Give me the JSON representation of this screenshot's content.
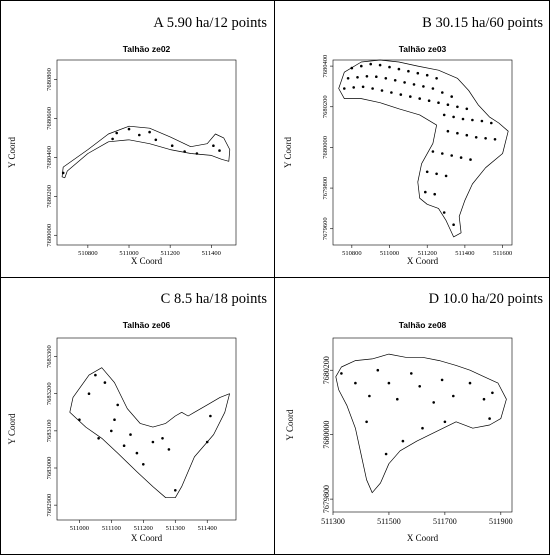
{
  "panels": [
    {
      "label": "A 5.90 ha/12 points"
    },
    {
      "label": "B 30.15 ha/60 points"
    },
    {
      "label": "C 8.5 ha/18 points"
    },
    {
      "label": "D 10.0 ha/20 points"
    }
  ],
  "chart_data": [
    {
      "type": "scatter",
      "title": "Talhão ze02",
      "xlabel": "X Coord",
      "ylabel": "Y Coord",
      "x_ticks": [
        "510800",
        "511000",
        "511200",
        "511400"
      ],
      "y_ticks": [
        "7680000",
        "7680200",
        "7680400",
        "7680600",
        "7680800"
      ],
      "xlim": [
        510650,
        511520
      ],
      "ylim": [
        7679950,
        7680900
      ],
      "boundary": [
        [
          510680,
          7680350
        ],
        [
          510800,
          7680440
        ],
        [
          510900,
          7680520
        ],
        [
          511000,
          7680560
        ],
        [
          511100,
          7680550
        ],
        [
          511200,
          7680505
        ],
        [
          511300,
          7680455
        ],
        [
          511380,
          7680470
        ],
        [
          511420,
          7680520
        ],
        [
          511460,
          7680500
        ],
        [
          511490,
          7680440
        ],
        [
          511485,
          7680380
        ],
        [
          511450,
          7680390
        ],
        [
          511400,
          7680410
        ],
        [
          511300,
          7680420
        ],
        [
          511200,
          7680440
        ],
        [
          511100,
          7680470
        ],
        [
          511000,
          7680490
        ],
        [
          510900,
          7680480
        ],
        [
          510800,
          7680420
        ],
        [
          510700,
          7680330
        ],
        [
          510688,
          7680295
        ],
        [
          510675,
          7680300
        ]
      ],
      "x": [
        510680,
        510920,
        510940,
        511000,
        511050,
        511100,
        511130,
        511210,
        511270,
        511330,
        511410,
        511440
      ],
      "y": [
        7680320,
        7680495,
        7680525,
        7680545,
        7680515,
        7680530,
        7680490,
        7680460,
        7680430,
        7680420,
        7680460,
        7680435
      ]
    },
    {
      "type": "scatter",
      "title": "Talhão ze03",
      "xlabel": "X Coord",
      "ylabel": "Y Coord",
      "x_ticks": [
        "510800",
        "511000",
        "511200",
        "511400",
        "511600"
      ],
      "y_ticks": [
        "7679600",
        "7679800",
        "7680000",
        "7680200",
        "7680400"
      ],
      "xlim": [
        510700,
        511650
      ],
      "ylim": [
        7679520,
        7680430
      ],
      "boundary": [
        [
          510730,
          7680290
        ],
        [
          510760,
          7680370
        ],
        [
          510850,
          7680420
        ],
        [
          510950,
          7680430
        ],
        [
          511050,
          7680420
        ],
        [
          511150,
          7680400
        ],
        [
          511260,
          7680380
        ],
        [
          511360,
          7680340
        ],
        [
          511420,
          7680280
        ],
        [
          511470,
          7680210
        ],
        [
          511530,
          7680150
        ],
        [
          511580,
          7680120
        ],
        [
          511630,
          7680080
        ],
        [
          511600,
          7679970
        ],
        [
          511510,
          7679900
        ],
        [
          511440,
          7679820
        ],
        [
          511400,
          7679740
        ],
        [
          511370,
          7679660
        ],
        [
          511380,
          7679580
        ],
        [
          511340,
          7679560
        ],
        [
          511300,
          7679640
        ],
        [
          511260,
          7679700
        ],
        [
          511200,
          7679720
        ],
        [
          511160,
          7679750
        ],
        [
          511150,
          7679830
        ],
        [
          511170,
          7679920
        ],
        [
          511230,
          7680020
        ],
        [
          511250,
          7680110
        ],
        [
          511160,
          7680160
        ],
        [
          511050,
          7680190
        ],
        [
          510950,
          7680220
        ],
        [
          510850,
          7680240
        ],
        [
          510760,
          7680240
        ]
      ],
      "x": [
        510800,
        510850,
        510900,
        510950,
        511000,
        511050,
        511100,
        511150,
        511200,
        511250,
        510780,
        510830,
        510880,
        510930,
        510980,
        511030,
        511080,
        511130,
        511180,
        511230,
        511280,
        511330,
        510760,
        510810,
        510860,
        510910,
        510960,
        511010,
        511060,
        511110,
        511160,
        511210,
        511260,
        511310,
        511360,
        511410,
        511290,
        511340,
        511390,
        511440,
        511490,
        511540,
        511310,
        511360,
        511410,
        511460,
        511510,
        511560,
        511230,
        511280,
        511330,
        511380,
        511430,
        511200,
        511250,
        511300,
        511190,
        511240,
        511290,
        511340
      ],
      "y": [
        7680390,
        7680400,
        7680410,
        7680405,
        7680395,
        7680385,
        7680375,
        7680365,
        7680355,
        7680340,
        7680340,
        7680345,
        7680350,
        7680348,
        7680340,
        7680330,
        7680320,
        7680310,
        7680300,
        7680290,
        7680270,
        7680250,
        7680290,
        7680295,
        7680298,
        7680290,
        7680280,
        7680270,
        7680260,
        7680250,
        7680240,
        7680230,
        7680220,
        7680210,
        7680200,
        7680190,
        7680160,
        7680150,
        7680140,
        7680135,
        7680130,
        7680120,
        7680080,
        7680070,
        7680060,
        7680050,
        7680045,
        7680040,
        7679980,
        7679970,
        7679960,
        7679950,
        7679940,
        7679880,
        7679870,
        7679860,
        7679780,
        7679770,
        7679680,
        7679620
      ]
    },
    {
      "type": "scatter",
      "title": "Talhão ze06",
      "xlabel": "X Coord",
      "ylabel": "Y Coord",
      "x_ticks": [
        "511000",
        "511100",
        "511200",
        "511300",
        "511400"
      ],
      "y_ticks": [
        "7682900",
        "7683000",
        "7683100",
        "7683200",
        "7683300"
      ],
      "xlim": [
        510930,
        511490
      ],
      "ylim": [
        7682860,
        7683350
      ],
      "boundary": [
        [
          510970,
          7683150
        ],
        [
          510980,
          7683190
        ],
        [
          511030,
          7683250
        ],
        [
          511070,
          7683270
        ],
        [
          511110,
          7683230
        ],
        [
          511150,
          7683160
        ],
        [
          511190,
          7683120
        ],
        [
          511230,
          7683110
        ],
        [
          511270,
          7683120
        ],
        [
          511300,
          7683140
        ],
        [
          511320,
          7683150
        ],
        [
          511340,
          7683140
        ],
        [
          511360,
          7683150
        ],
        [
          511400,
          7683170
        ],
        [
          511440,
          7683190
        ],
        [
          511470,
          7683200
        ],
        [
          511455,
          7683150
        ],
        [
          511420,
          7683090
        ],
        [
          511360,
          7683030
        ],
        [
          511320,
          7682950
        ],
        [
          511300,
          7682920
        ],
        [
          511270,
          7682920
        ],
        [
          511230,
          7682950
        ],
        [
          511180,
          7682990
        ],
        [
          511120,
          7683040
        ],
        [
          511070,
          7683080
        ],
        [
          511020,
          7683110
        ]
      ],
      "x": [
        511050,
        511030,
        511000,
        511080,
        511120,
        511100,
        511060,
        511140,
        511180,
        511110,
        511160,
        511230,
        511260,
        511280,
        511200,
        511410,
        511400,
        511300
      ],
      "y": [
        7683250,
        7683200,
        7683130,
        7683230,
        7683170,
        7683100,
        7683080,
        7683060,
        7683040,
        7683130,
        7683090,
        7683070,
        7683080,
        7683050,
        7683010,
        7683140,
        7683070,
        7682940
      ]
    },
    {
      "type": "scatter",
      "title": "Talhão ze08",
      "xlabel": "X Coord",
      "ylabel": "Y Coord",
      "x_ticks": [
        "511300",
        "511500",
        "511700",
        "511900"
      ],
      "y_ticks": [
        "7679800",
        "7680000",
        "7680200"
      ],
      "xlim": [
        511300,
        511940
      ],
      "ylim": [
        7679760,
        7680300
      ],
      "boundary": [
        [
          511310,
          7680180
        ],
        [
          511330,
          7680210
        ],
        [
          511380,
          7680230
        ],
        [
          511440,
          7680235
        ],
        [
          511500,
          7680250
        ],
        [
          511560,
          7680240
        ],
        [
          511620,
          7680240
        ],
        [
          511680,
          7680230
        ],
        [
          511740,
          7680215
        ],
        [
          511790,
          7680200
        ],
        [
          511840,
          7680180
        ],
        [
          511890,
          7680160
        ],
        [
          511920,
          7680110
        ],
        [
          511900,
          7680050
        ],
        [
          511860,
          7680030
        ],
        [
          511800,
          7680020
        ],
        [
          511740,
          7680040
        ],
        [
          511670,
          7680010
        ],
        [
          511600,
          7679980
        ],
        [
          511540,
          7679950
        ],
        [
          511500,
          7679910
        ],
        [
          511470,
          7679850
        ],
        [
          511440,
          7679820
        ],
        [
          511420,
          7679860
        ],
        [
          511400,
          7679940
        ],
        [
          511380,
          7680020
        ],
        [
          511350,
          7680090
        ],
        [
          511320,
          7680140
        ]
      ],
      "x": [
        511330,
        511380,
        511430,
        511460,
        511500,
        511530,
        511580,
        511610,
        511660,
        511690,
        511730,
        511790,
        511840,
        511870,
        511420,
        511490,
        511550,
        511620,
        511700,
        511860
      ],
      "y": [
        7680190,
        7680160,
        7680120,
        7680200,
        7680160,
        7680110,
        7680190,
        7680150,
        7680100,
        7680170,
        7680120,
        7680160,
        7680110,
        7680130,
        7680040,
        7679940,
        7679980,
        7680020,
        7680040,
        7680050
      ]
    }
  ]
}
